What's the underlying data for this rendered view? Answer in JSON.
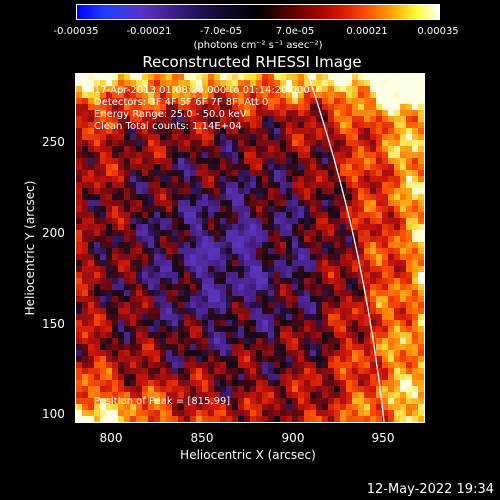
{
  "colorbar": {
    "ticks": [
      "-0.00035",
      "-0.00021",
      "-7.0e-05",
      "7.0e-05",
      "0.00021",
      "0.00035"
    ],
    "unit": "(photons cm⁻² s⁻¹ asec⁻²)"
  },
  "title": "Reconstructed RHESSI Image",
  "info": {
    "time": "17-Apr-2013 01:08:20.000 to 01:14:20.000",
    "detectors": "Detectors: 3F 4F 5F 6F 7F 8F, Att 0",
    "energy": "Energy Range: 25.0 - 50.0 keV",
    "clean": "Clean     Total counts: 1.14E+04",
    "peak": "Position of Peak = [815,99]"
  },
  "axes": {
    "xlabel": "Heliocentric X (arcsec)",
    "ylabel": "Heliocentric Y (arcsec)",
    "xticks": [
      "800",
      "850",
      "900",
      "950"
    ],
    "yticks": [
      "250",
      "200",
      "150",
      "100"
    ],
    "xlim": [
      780,
      970
    ],
    "ylim": [
      95,
      285
    ]
  },
  "timestamp": "12-May-2022 19:34"
}
